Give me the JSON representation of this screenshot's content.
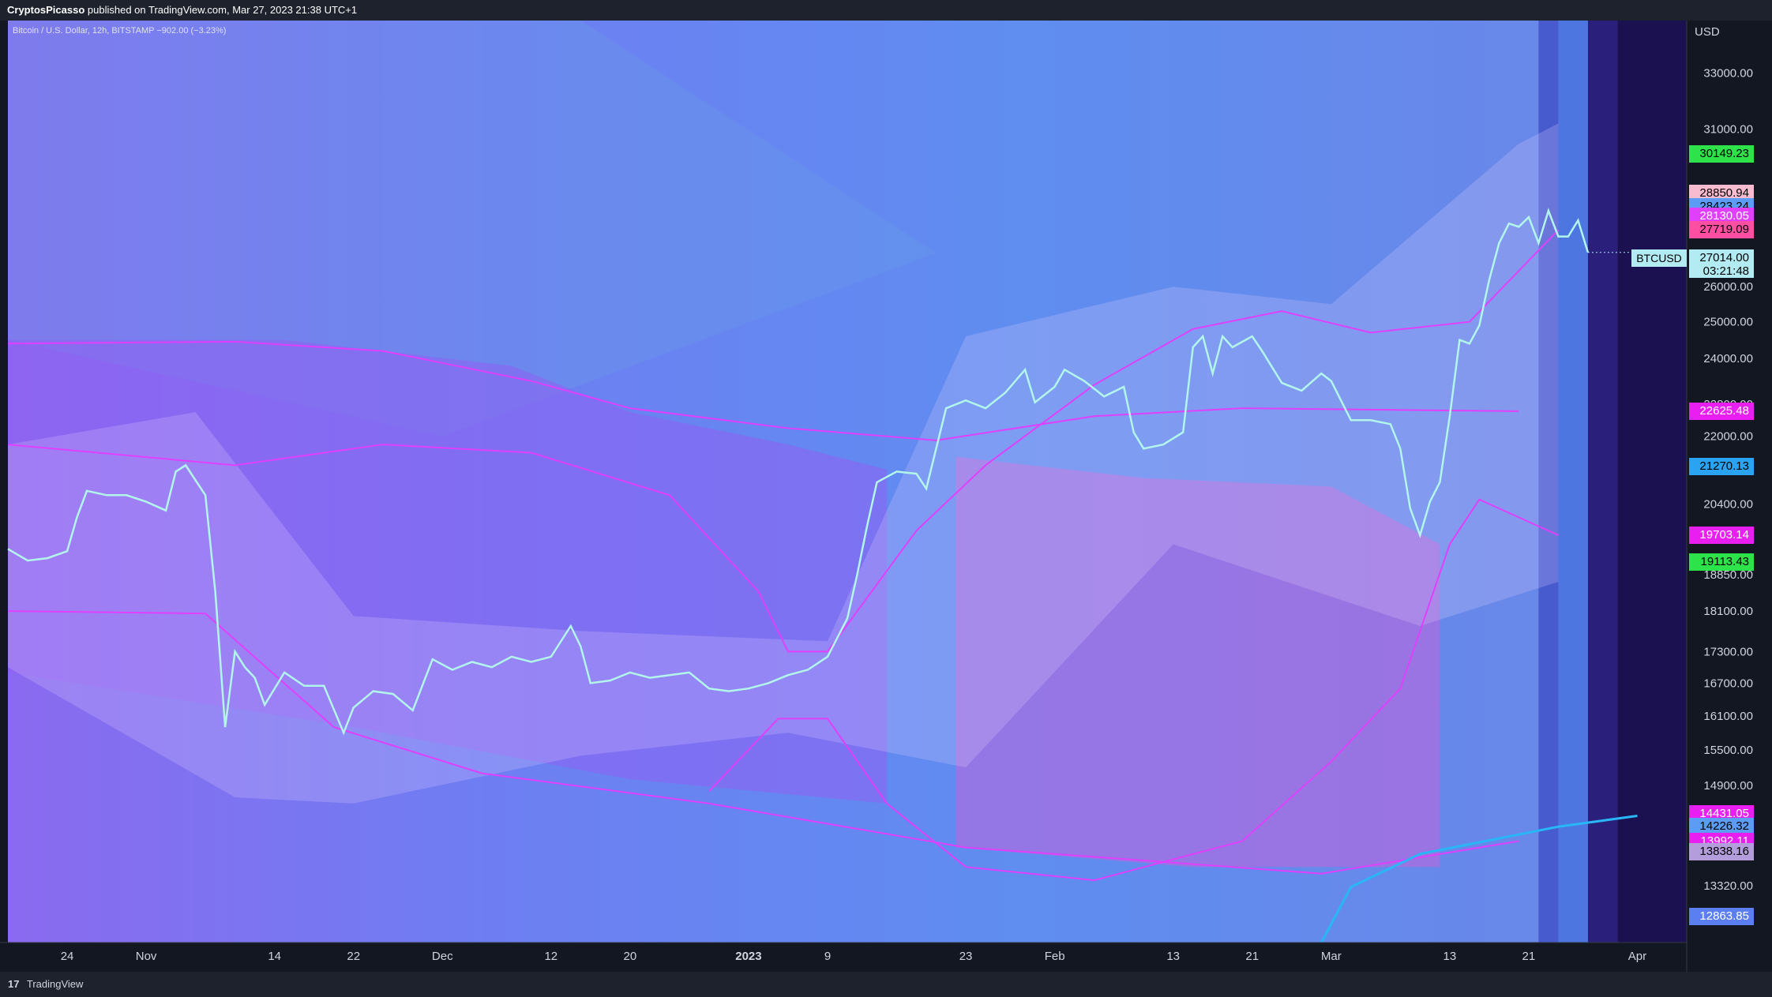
{
  "header": {
    "publisher": "CryptosPicasso",
    "published_text": "published on TradingView.com, Mar 27, 2023 21:38 UTC+1"
  },
  "footer": {
    "brand": "TradingView",
    "logo_mark": "17"
  },
  "symbol_info": "Bitcoin / U.S. Dollar, 12h, BITSTAMP  −902.00 (−3.23%)",
  "colors": {
    "background": "#131722",
    "price_line": "#b2f5ea",
    "magenta": "#e040fb",
    "blue_fill": "#5b7ff0",
    "violet_fill": "#8c63f5"
  },
  "chart_data": {
    "type": "line",
    "title": "Bitcoin / U.S. Dollar",
    "interval": "12h",
    "exchange": "BITSTAMP",
    "y_unit": "USD",
    "y_scale": "log",
    "ylim": [
      12500,
      35000
    ],
    "xlim": [
      "2022-10-18",
      "2023-04-06"
    ],
    "x_ticks": [
      {
        "label": "24",
        "date": "2022-10-24"
      },
      {
        "label": "Nov",
        "date": "2022-11-01"
      },
      {
        "label": "14",
        "date": "2022-11-14"
      },
      {
        "label": "22",
        "date": "2022-11-22"
      },
      {
        "label": "Dec",
        "date": "2022-12-01"
      },
      {
        "label": "12",
        "date": "2022-12-12"
      },
      {
        "label": "20",
        "date": "2022-12-20"
      },
      {
        "label": "2023",
        "date": "2023-01-01"
      },
      {
        "label": "9",
        "date": "2023-01-09"
      },
      {
        "label": "23",
        "date": "2023-01-23"
      },
      {
        "label": "Feb",
        "date": "2023-02-01"
      },
      {
        "label": "13",
        "date": "2023-02-13"
      },
      {
        "label": "21",
        "date": "2023-02-21"
      },
      {
        "label": "Mar",
        "date": "2023-03-01"
      },
      {
        "label": "13",
        "date": "2023-03-13"
      },
      {
        "label": "21",
        "date": "2023-03-21"
      },
      {
        "label": "Apr",
        "date": "2023-04-01"
      }
    ],
    "y_ticks": [
      "33000.00",
      "31000.00",
      "26000.00",
      "25000.00",
      "24000.00",
      "22800.00",
      "22000.00",
      "20400.00",
      "18850.00",
      "18100.00",
      "17300.00",
      "16700.00",
      "16100.00",
      "15500.00",
      "14900.00",
      "13320.00"
    ],
    "series": [
      {
        "name": "BTCUSD",
        "points": [
          [
            "2022-10-18",
            19400
          ],
          [
            "2022-10-20",
            19150
          ],
          [
            "2022-10-22",
            19200
          ],
          [
            "2022-10-24",
            19350
          ],
          [
            "2022-10-25",
            20100
          ],
          [
            "2022-10-26",
            20700
          ],
          [
            "2022-10-28",
            20600
          ],
          [
            "2022-10-30",
            20600
          ],
          [
            "2022-11-01",
            20450
          ],
          [
            "2022-11-03",
            20250
          ],
          [
            "2022-11-04",
            21150
          ],
          [
            "2022-11-05",
            21300
          ],
          [
            "2022-11-07",
            20600
          ],
          [
            "2022-11-08",
            18500
          ],
          [
            "2022-11-09",
            15900
          ],
          [
            "2022-11-10",
            17300
          ],
          [
            "2022-11-11",
            17000
          ],
          [
            "2022-11-12",
            16800
          ],
          [
            "2022-11-13",
            16300
          ],
          [
            "2022-11-15",
            16900
          ],
          [
            "2022-11-17",
            16650
          ],
          [
            "2022-11-19",
            16650
          ],
          [
            "2022-11-21",
            15800
          ],
          [
            "2022-11-22",
            16250
          ],
          [
            "2022-11-24",
            16550
          ],
          [
            "2022-11-26",
            16500
          ],
          [
            "2022-11-28",
            16200
          ],
          [
            "2022-11-30",
            17150
          ],
          [
            "2022-12-02",
            16950
          ],
          [
            "2022-12-04",
            17100
          ],
          [
            "2022-12-06",
            17000
          ],
          [
            "2022-12-08",
            17200
          ],
          [
            "2022-12-10",
            17100
          ],
          [
            "2022-12-12",
            17200
          ],
          [
            "2022-12-14",
            17800
          ],
          [
            "2022-12-15",
            17400
          ],
          [
            "2022-12-16",
            16700
          ],
          [
            "2022-12-18",
            16750
          ],
          [
            "2022-12-20",
            16900
          ],
          [
            "2022-12-22",
            16800
          ],
          [
            "2022-12-24",
            16850
          ],
          [
            "2022-12-26",
            16900
          ],
          [
            "2022-12-28",
            16600
          ],
          [
            "2022-12-30",
            16550
          ],
          [
            "2023-01-01",
            16600
          ],
          [
            "2023-01-03",
            16700
          ],
          [
            "2023-01-05",
            16850
          ],
          [
            "2023-01-07",
            16950
          ],
          [
            "2023-01-09",
            17200
          ],
          [
            "2023-01-11",
            17950
          ],
          [
            "2023-01-12",
            18850
          ],
          [
            "2023-01-13",
            19900
          ],
          [
            "2023-01-14",
            20900
          ],
          [
            "2023-01-16",
            21150
          ],
          [
            "2023-01-18",
            21100
          ],
          [
            "2023-01-19",
            20750
          ],
          [
            "2023-01-21",
            22700
          ],
          [
            "2023-01-23",
            22900
          ],
          [
            "2023-01-25",
            22700
          ],
          [
            "2023-01-27",
            23100
          ],
          [
            "2023-01-29",
            23700
          ],
          [
            "2023-01-30",
            22850
          ],
          [
            "2023-02-01",
            23250
          ],
          [
            "2023-02-02",
            23700
          ],
          [
            "2023-02-04",
            23400
          ],
          [
            "2023-02-06",
            23000
          ],
          [
            "2023-02-08",
            23250
          ],
          [
            "2023-02-09",
            22100
          ],
          [
            "2023-02-10",
            21700
          ],
          [
            "2023-02-12",
            21800
          ],
          [
            "2023-02-14",
            22100
          ],
          [
            "2023-02-15",
            24300
          ],
          [
            "2023-02-16",
            24600
          ],
          [
            "2023-02-17",
            23600
          ],
          [
            "2023-02-18",
            24600
          ],
          [
            "2023-02-19",
            24300
          ],
          [
            "2023-02-21",
            24600
          ],
          [
            "2023-02-22",
            24200
          ],
          [
            "2023-02-24",
            23350
          ],
          [
            "2023-02-26",
            23150
          ],
          [
            "2023-02-28",
            23600
          ],
          [
            "2023-03-01",
            23400
          ],
          [
            "2023-03-03",
            22400
          ],
          [
            "2023-03-05",
            22400
          ],
          [
            "2023-03-07",
            22300
          ],
          [
            "2023-03-08",
            21700
          ],
          [
            "2023-03-09",
            20300
          ],
          [
            "2023-03-10",
            19700
          ],
          [
            "2023-03-11",
            20450
          ],
          [
            "2023-03-12",
            20900
          ],
          [
            "2023-03-13",
            22500
          ],
          [
            "2023-03-14",
            24500
          ],
          [
            "2023-03-15",
            24400
          ],
          [
            "2023-03-16",
            24900
          ],
          [
            "2023-03-17",
            26200
          ],
          [
            "2023-03-18",
            27300
          ],
          [
            "2023-03-19",
            27900
          ],
          [
            "2023-03-20",
            27800
          ],
          [
            "2023-03-21",
            28100
          ],
          [
            "2023-03-22",
            27300
          ],
          [
            "2023-03-23",
            28300
          ],
          [
            "2023-03-24",
            27500
          ],
          [
            "2023-03-25",
            27500
          ],
          [
            "2023-03-26",
            28000
          ],
          [
            "2023-03-27",
            27014
          ]
        ]
      }
    ],
    "price_labels": [
      {
        "value": "30149.23",
        "bg": "#2ee34a",
        "fg": "#000000"
      },
      {
        "value": "28850.94",
        "bg": "#f8bbd0",
        "fg": "#000000"
      },
      {
        "value": "28423.24",
        "bg": "#5c9cf5",
        "fg": "#000000"
      },
      {
        "value": "28130.05",
        "bg": "#e040fb",
        "fg": "#ffffff"
      },
      {
        "value": "27719.09",
        "bg": "#ff4fa3",
        "fg": "#000000"
      },
      {
        "value": "22625.48",
        "bg": "#e91ef0",
        "fg": "#ffffff"
      },
      {
        "value": "21270.13",
        "bg": "#29a3f2",
        "fg": "#000000"
      },
      {
        "value": "19703.14",
        "bg": "#e91ef0",
        "fg": "#ffffff"
      },
      {
        "value": "19113.43",
        "bg": "#2ee34a",
        "fg": "#000000"
      },
      {
        "value": "14431.05",
        "bg": "#e91ef0",
        "fg": "#ffffff"
      },
      {
        "value": "14226.32",
        "bg": "#5c9cf5",
        "fg": "#000000"
      },
      {
        "value": "13992.11",
        "bg": "#e91ef0",
        "fg": "#ffffff"
      },
      {
        "value": "13838.16",
        "bg": "#b39ddb",
        "fg": "#000000"
      },
      {
        "value": "12863.85",
        "bg": "#5b7ff0",
        "fg": "#ffffff"
      }
    ],
    "last_price": {
      "label": "BTCUSD",
      "value": "27014.00",
      "countdown": "03:21:48"
    }
  }
}
